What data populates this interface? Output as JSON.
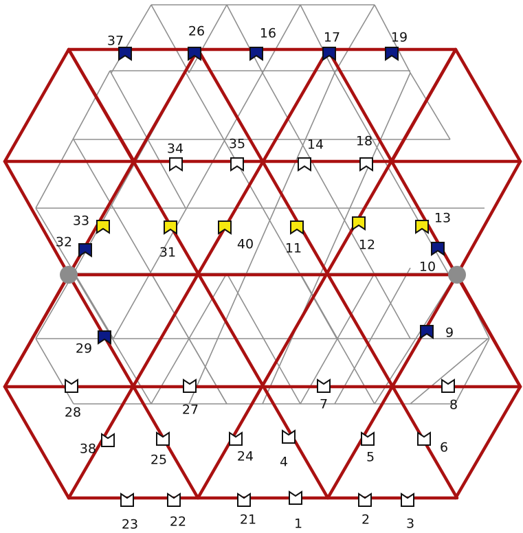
{
  "colors": {
    "background": "#ffffff",
    "grid": "#8f8f8f",
    "red_lattice": "#aa1111",
    "blue": "#0b1a86",
    "yellow": "#f5e80f",
    "open": "#ffffff",
    "joint": "#8c8c8c",
    "outline": "#111111"
  },
  "markers": [
    {
      "id": "37",
      "label": "37",
      "kind": "blue"
    },
    {
      "id": "26",
      "label": "26",
      "kind": "blue"
    },
    {
      "id": "16",
      "label": "16",
      "kind": "blue"
    },
    {
      "id": "17",
      "label": "17",
      "kind": "blue"
    },
    {
      "id": "19",
      "label": "19",
      "kind": "blue"
    },
    {
      "id": "34",
      "label": "34",
      "kind": "open"
    },
    {
      "id": "35",
      "label": "35",
      "kind": "open"
    },
    {
      "id": "14",
      "label": "14",
      "kind": "open"
    },
    {
      "id": "18",
      "label": "18",
      "kind": "open"
    },
    {
      "id": "33",
      "label": "33",
      "kind": "yellow"
    },
    {
      "id": "31",
      "label": "31",
      "kind": "yellow"
    },
    {
      "id": "40",
      "label": "40",
      "kind": "yellow"
    },
    {
      "id": "11",
      "label": "11",
      "kind": "yellow"
    },
    {
      "id": "12",
      "label": "12",
      "kind": "yellow"
    },
    {
      "id": "13",
      "label": "13",
      "kind": "yellow"
    },
    {
      "id": "32",
      "label": "32",
      "kind": "blue"
    },
    {
      "id": "10",
      "label": "10",
      "kind": "blue"
    },
    {
      "id": "29",
      "label": "29",
      "kind": "blue"
    },
    {
      "id": "9",
      "label": "9",
      "kind": "blue"
    },
    {
      "id": "28",
      "label": "28",
      "kind": "open-down"
    },
    {
      "id": "27",
      "label": "27",
      "kind": "open-down"
    },
    {
      "id": "7",
      "label": "7",
      "kind": "open-down"
    },
    {
      "id": "8",
      "label": "8",
      "kind": "open-down"
    },
    {
      "id": "38",
      "label": "38",
      "kind": "open-down"
    },
    {
      "id": "25",
      "label": "25",
      "kind": "open-down"
    },
    {
      "id": "24",
      "label": "24",
      "kind": "open-down"
    },
    {
      "id": "4",
      "label": "4",
      "kind": "open-down"
    },
    {
      "id": "5",
      "label": "5",
      "kind": "open-down"
    },
    {
      "id": "6",
      "label": "6",
      "kind": "open-down"
    },
    {
      "id": "23",
      "label": "23",
      "kind": "open-down"
    },
    {
      "id": "22",
      "label": "22",
      "kind": "open-down"
    },
    {
      "id": "21",
      "label": "21",
      "kind": "open-down"
    },
    {
      "id": "1",
      "label": "1",
      "kind": "open-down"
    },
    {
      "id": "2",
      "label": "2",
      "kind": "open-down"
    },
    {
      "id": "3",
      "label": "3",
      "kind": "open-down"
    }
  ]
}
